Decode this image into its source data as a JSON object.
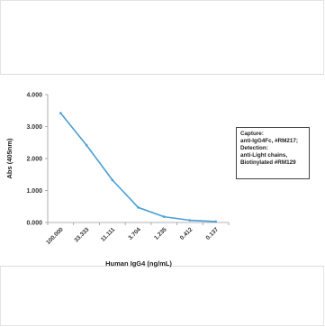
{
  "chart_data": {
    "type": "line",
    "x": [
      "100.000",
      "33.333",
      "11.111",
      "3.704",
      "1.235",
      "0.412",
      "0.137"
    ],
    "values": [
      3.42,
      2.42,
      1.33,
      0.47,
      0.18,
      0.07,
      0.03
    ],
    "xlabel": "Human IgG4 (ng/mL)",
    "ylabel": "Abs (405nm)",
    "yticks": [
      "0.000",
      "1.000",
      "2.000",
      "3.000",
      "4.000"
    ],
    "ylim": [
      0,
      4
    ],
    "grid": false,
    "series_color": "#4a9fd4",
    "legend_lines": [
      "Capture:",
      "anti-IgG4Fc, #RM217;",
      "Detection:",
      "anti-Light chains,",
      "Biotinylated #RM129"
    ],
    "legend_placement": "right"
  }
}
